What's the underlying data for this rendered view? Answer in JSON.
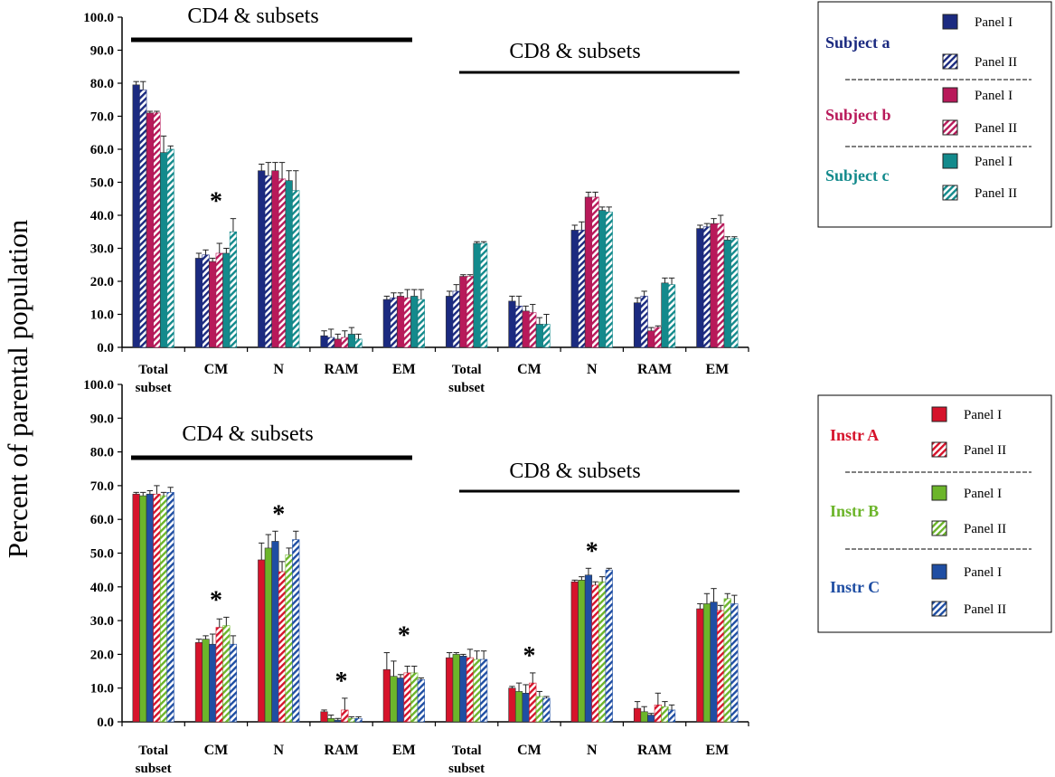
{
  "ylabel": "Percent of parental population",
  "y_ticks": [
    "0.0",
    "10.0",
    "20.0",
    "30.0",
    "40.0",
    "50.0",
    "60.0",
    "70.0",
    "80.0",
    "90.0",
    "100.0"
  ],
  "colors": {
    "subject_a": "#1b2a80",
    "subject_b": "#b8195a",
    "subject_c": "#138a8c",
    "instr_a": "#d6132b",
    "instr_b": "#6cb52a",
    "instr_c": "#1f4ea3"
  },
  "chart_data": [
    {
      "type": "bar",
      "panel": "top",
      "ylim": [
        0,
        100
      ],
      "categories": [
        "Total subset",
        "CM",
        "N",
        "RAM",
        "EM",
        "Total subset",
        "CM",
        "N",
        "RAM",
        "EM"
      ],
      "category_lines": [
        [
          "Total",
          "subset"
        ],
        [
          "CM"
        ],
        [
          "N"
        ],
        [
          "RAM"
        ],
        [
          "EM"
        ],
        [
          "Total",
          "subset"
        ],
        [
          "CM"
        ],
        [
          "N"
        ],
        [
          "RAM"
        ],
        [
          "EM"
        ]
      ],
      "group_labels": [
        "CD4 & subsets",
        "CD8 & subsets"
      ],
      "significance_marks": [
        {
          "category_index": 1,
          "mark": "*"
        }
      ],
      "legend": [
        {
          "name": "Subject a",
          "color_key": "subject_a",
          "items": [
            "Panel I",
            "Panel II"
          ]
        },
        {
          "name": "Subject b",
          "color_key": "subject_b",
          "items": [
            "Panel I",
            "Panel II"
          ]
        },
        {
          "name": "Subject c",
          "color_key": "subject_c",
          "items": [
            "Panel I",
            "Panel II"
          ]
        }
      ],
      "series": [
        {
          "color_key": "subject_a",
          "hatched": false,
          "values": [
            79.5,
            27.0,
            53.5,
            3.5,
            14.5,
            15.5,
            14.0,
            35.5,
            13.5,
            36.0
          ],
          "errors": [
            1.0,
            1.5,
            2.0,
            1.5,
            1.0,
            1.5,
            1.5,
            1.5,
            1.5,
            1.0
          ]
        },
        {
          "color_key": "subject_a",
          "hatched": true,
          "values": [
            78.0,
            28.0,
            52.0,
            3.0,
            15.0,
            17.0,
            12.5,
            35.5,
            15.5,
            36.5
          ],
          "errors": [
            2.5,
            1.5,
            4.0,
            2.5,
            1.5,
            2.0,
            3.0,
            2.5,
            1.5,
            1.0
          ]
        },
        {
          "color_key": "subject_b",
          "hatched": false,
          "values": [
            71.0,
            26.0,
            53.5,
            2.5,
            15.5,
            21.5,
            11.0,
            45.5,
            5.0,
            37.5
          ],
          "errors": [
            0.5,
            1.0,
            2.5,
            1.5,
            1.0,
            0.5,
            1.5,
            1.5,
            1.0,
            1.5
          ]
        },
        {
          "color_key": "subject_b",
          "hatched": true,
          "values": [
            71.0,
            28.5,
            51.0,
            3.0,
            15.0,
            21.5,
            10.5,
            45.5,
            6.0,
            37.5
          ],
          "errors": [
            0.5,
            3.0,
            5.0,
            2.0,
            2.5,
            0.5,
            2.5,
            1.5,
            0.5,
            2.5
          ]
        },
        {
          "color_key": "subject_c",
          "hatched": false,
          "values": [
            59.0,
            28.5,
            50.5,
            4.0,
            15.5,
            31.5,
            7.0,
            41.5,
            19.5,
            32.5
          ],
          "errors": [
            5.0,
            1.5,
            3.0,
            2.0,
            2.0,
            0.5,
            2.0,
            1.0,
            1.5,
            1.0
          ]
        },
        {
          "color_key": "subject_c",
          "hatched": true,
          "values": [
            60.0,
            35.0,
            47.5,
            2.5,
            14.5,
            31.5,
            7.0,
            41.0,
            19.0,
            33.0
          ],
          "errors": [
            1.0,
            4.0,
            6.0,
            1.5,
            3.0,
            0.5,
            3.0,
            1.5,
            2.0,
            0.5
          ]
        }
      ]
    },
    {
      "type": "bar",
      "panel": "bottom",
      "ylim": [
        0,
        100
      ],
      "categories": [
        "Total subset",
        "CM",
        "N",
        "RAM",
        "EM",
        "Total subset",
        "CM",
        "N",
        "RAM",
        "EM"
      ],
      "category_lines": [
        [
          "Total",
          "subset"
        ],
        [
          "CM"
        ],
        [
          "N"
        ],
        [
          "RAM"
        ],
        [
          "EM"
        ],
        [
          "Total",
          "subset"
        ],
        [
          "CM"
        ],
        [
          "N"
        ],
        [
          "RAM"
        ],
        [
          "EM"
        ]
      ],
      "group_labels": [
        "CD4 & subsets",
        "CD8 & subsets"
      ],
      "significance_marks": [
        {
          "category_index": 1,
          "mark": "*"
        },
        {
          "category_index": 2,
          "mark": "*"
        },
        {
          "category_index": 3,
          "mark": "*"
        },
        {
          "category_index": 4,
          "mark": "*"
        },
        {
          "category_index": 6,
          "mark": "*"
        },
        {
          "category_index": 7,
          "mark": "*"
        }
      ],
      "legend": [
        {
          "name": "Instr A",
          "color_key": "instr_a",
          "items": [
            "Panel I",
            "Panel II"
          ]
        },
        {
          "name": "Instr B",
          "color_key": "instr_b",
          "items": [
            "Panel I",
            "Panel II"
          ]
        },
        {
          "name": "Instr C",
          "color_key": "instr_c",
          "items": [
            "Panel I",
            "Panel II"
          ]
        }
      ],
      "series": [
        {
          "color_key": "instr_a",
          "hatched": false,
          "values": [
            67.5,
            23.5,
            48.0,
            3.0,
            15.5,
            19.0,
            10.0,
            41.5,
            4.0,
            33.5
          ],
          "errors": [
            0.5,
            1.0,
            5.0,
            0.5,
            5.0,
            1.5,
            0.5,
            0.5,
            2.0,
            1.5
          ]
        },
        {
          "color_key": "instr_b",
          "hatched": false,
          "values": [
            67.0,
            24.5,
            51.5,
            1.0,
            13.5,
            20.0,
            9.0,
            42.0,
            3.0,
            35.0
          ],
          "errors": [
            1.0,
            1.0,
            4.0,
            1.0,
            4.5,
            0.5,
            2.5,
            1.0,
            1.5,
            3.0
          ]
        },
        {
          "color_key": "instr_c",
          "hatched": false,
          "values": [
            67.5,
            23.0,
            53.5,
            0.5,
            13.0,
            19.5,
            8.5,
            43.5,
            2.0,
            35.5
          ],
          "errors": [
            1.0,
            3.0,
            3.0,
            0.5,
            1.0,
            0.5,
            2.5,
            2.0,
            0.5,
            4.0
          ]
        },
        {
          "color_key": "instr_a",
          "hatched": true,
          "values": [
            67.5,
            28.0,
            44.5,
            3.5,
            14.5,
            19.0,
            11.5,
            40.5,
            5.0,
            33.0
          ],
          "errors": [
            2.5,
            2.5,
            3.0,
            3.5,
            2.0,
            2.5,
            3.0,
            1.0,
            3.5,
            1.5
          ]
        },
        {
          "color_key": "instr_b",
          "hatched": true,
          "values": [
            67.0,
            28.5,
            49.5,
            1.0,
            14.5,
            18.5,
            7.5,
            41.5,
            4.5,
            36.5
          ],
          "errors": [
            1.0,
            2.5,
            2.0,
            0.5,
            2.0,
            2.5,
            1.5,
            1.5,
            1.5,
            1.5
          ]
        },
        {
          "color_key": "instr_c",
          "hatched": true,
          "values": [
            68.0,
            23.0,
            54.0,
            1.0,
            12.5,
            18.5,
            7.0,
            45.0,
            3.5,
            35.0
          ],
          "errors": [
            1.5,
            2.5,
            2.5,
            0.5,
            0.5,
            2.5,
            0.5,
            0.5,
            1.5,
            2.5
          ]
        }
      ]
    }
  ]
}
